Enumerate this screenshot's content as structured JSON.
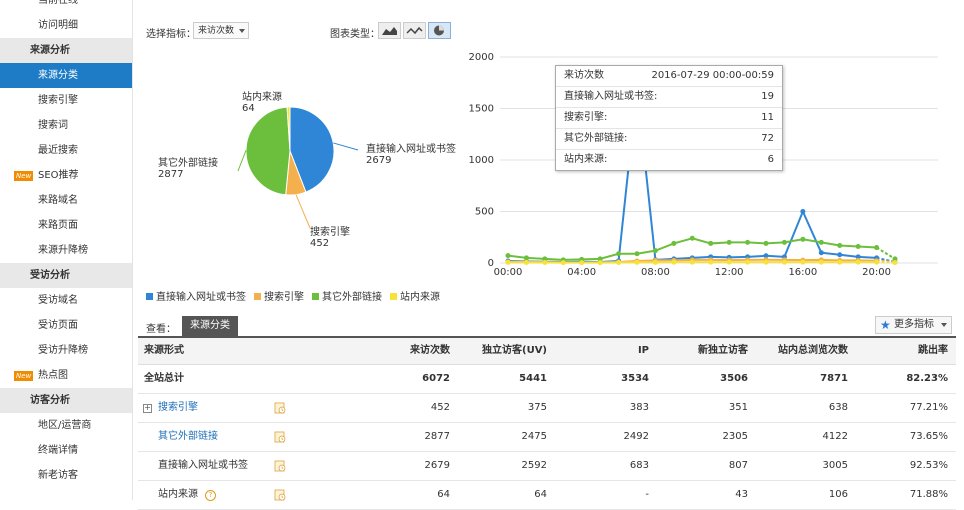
{
  "sidebar": {
    "items": [
      {
        "label": "当前在线",
        "type": "item"
      },
      {
        "label": "访问明细",
        "type": "item"
      },
      {
        "label": "来源分析",
        "type": "section"
      },
      {
        "label": "来源分类",
        "type": "item",
        "active": true
      },
      {
        "label": "搜索引擎",
        "type": "item"
      },
      {
        "label": "搜索词",
        "type": "item"
      },
      {
        "label": "最近搜索",
        "type": "item"
      },
      {
        "label": "SEO推荐",
        "type": "item",
        "badge": "New"
      },
      {
        "label": "来路域名",
        "type": "item"
      },
      {
        "label": "来路页面",
        "type": "item"
      },
      {
        "label": "来源升降榜",
        "type": "item"
      },
      {
        "label": "受访分析",
        "type": "section"
      },
      {
        "label": "受访域名",
        "type": "item"
      },
      {
        "label": "受访页面",
        "type": "item"
      },
      {
        "label": "受访升降榜",
        "type": "item"
      },
      {
        "label": "热点图",
        "type": "item",
        "badge": "New"
      },
      {
        "label": "访客分析",
        "type": "section"
      },
      {
        "label": "地区/运营商",
        "type": "item"
      },
      {
        "label": "终端详情",
        "type": "item"
      },
      {
        "label": "新老访客",
        "type": "item"
      }
    ]
  },
  "controls": {
    "metric_label": "选择指标：",
    "metric_value": "来访次数",
    "chart_type_label": "图表类型："
  },
  "legend": [
    {
      "name": "直接输入网址或书签",
      "color": "#2f86d6"
    },
    {
      "name": "搜索引擎",
      "color": "#f4b04c"
    },
    {
      "name": "其它外部链接",
      "color": "#6cbf3c"
    },
    {
      "name": "站内来源",
      "color": "#f5e23a"
    }
  ],
  "pie_labels": [
    {
      "name": "直接输入网址或书签",
      "value": "2679"
    },
    {
      "name": "搜索引擎",
      "value": "452"
    },
    {
      "name": "其它外部链接",
      "value": "2877"
    },
    {
      "name": "站内来源",
      "value": "64"
    }
  ],
  "tooltip": {
    "title": "来访次数",
    "time": "2016-07-29 00:00-00:59",
    "rows": [
      {
        "label": "直接输入网址或书签:",
        "value": "19"
      },
      {
        "label": "搜索引擎:",
        "value": "11"
      },
      {
        "label": "其它外部链接:",
        "value": "72"
      },
      {
        "label": "站内来源:",
        "value": "6"
      }
    ]
  },
  "chart_data": [
    {
      "type": "pie",
      "categories": [
        "直接输入网址或书签",
        "搜索引擎",
        "其它外部链接",
        "站内来源"
      ],
      "values": [
        2679,
        452,
        2877,
        64
      ],
      "colors": [
        "#2f86d6",
        "#f4b04c",
        "#6cbf3c",
        "#f5e23a"
      ]
    },
    {
      "type": "line",
      "x": [
        "00:00",
        "01:00",
        "02:00",
        "03:00",
        "04:00",
        "05:00",
        "06:00",
        "07:00",
        "08:00",
        "09:00",
        "10:00",
        "11:00",
        "12:00",
        "13:00",
        "14:00",
        "15:00",
        "16:00",
        "17:00",
        "18:00",
        "19:00",
        "20:00",
        "21:00"
      ],
      "xticks": [
        "00:00",
        "04:00",
        "08:00",
        "12:00",
        "16:00",
        "20:00"
      ],
      "yticks": [
        0,
        500,
        1000,
        1500,
        2000
      ],
      "ylim": [
        0,
        2000
      ],
      "grid": true,
      "series": [
        {
          "name": "直接输入网址或书签",
          "color": "#2f86d6",
          "values": [
            19,
            15,
            12,
            10,
            12,
            10,
            20,
            1700,
            30,
            40,
            50,
            60,
            55,
            60,
            70,
            60,
            500,
            100,
            80,
            60,
            50,
            10
          ]
        },
        {
          "name": "搜索引擎",
          "color": "#f4b04c",
          "values": [
            11,
            10,
            8,
            6,
            5,
            6,
            10,
            20,
            25,
            25,
            30,
            30,
            28,
            30,
            32,
            30,
            28,
            30,
            25,
            25,
            22,
            10
          ]
        },
        {
          "name": "其它外部链接",
          "color": "#6cbf3c",
          "values": [
            72,
            50,
            40,
            30,
            35,
            40,
            90,
            90,
            120,
            190,
            240,
            190,
            200,
            200,
            190,
            200,
            230,
            200,
            170,
            160,
            150,
            40
          ]
        },
        {
          "name": "站内来源",
          "color": "#f5e23a",
          "values": [
            6,
            5,
            5,
            4,
            4,
            4,
            5,
            6,
            6,
            8,
            8,
            8,
            8,
            8,
            8,
            8,
            8,
            8,
            8,
            8,
            8,
            4
          ]
        }
      ]
    }
  ],
  "tabs": {
    "view_label": "查看：",
    "active_tab": "来源分类",
    "more_label": "更多指标"
  },
  "table": {
    "headers": [
      "来源形式",
      "来访次数",
      "独立访客(UV)",
      "IP",
      "新独立访客",
      "站内总浏览次数",
      "跳出率"
    ],
    "total": {
      "label": "全站总计",
      "values": [
        "6072",
        "5441",
        "3534",
        "3506",
        "7871",
        "82.23%"
      ]
    },
    "rows": [
      {
        "label": "搜索引擎",
        "link": true,
        "expand": true,
        "values": [
          "452",
          "375",
          "383",
          "351",
          "638",
          "77.21%"
        ]
      },
      {
        "label": "其它外部链接",
        "link": true,
        "values": [
          "2877",
          "2475",
          "2492",
          "2305",
          "4122",
          "73.65%"
        ]
      },
      {
        "label": "直接输入网址或书签",
        "link": false,
        "values": [
          "2679",
          "2592",
          "683",
          "807",
          "3005",
          "92.53%"
        ]
      },
      {
        "label": "站内来源",
        "link": false,
        "help": true,
        "values": [
          "64",
          "64",
          "-",
          "43",
          "106",
          "71.88%"
        ]
      }
    ]
  }
}
